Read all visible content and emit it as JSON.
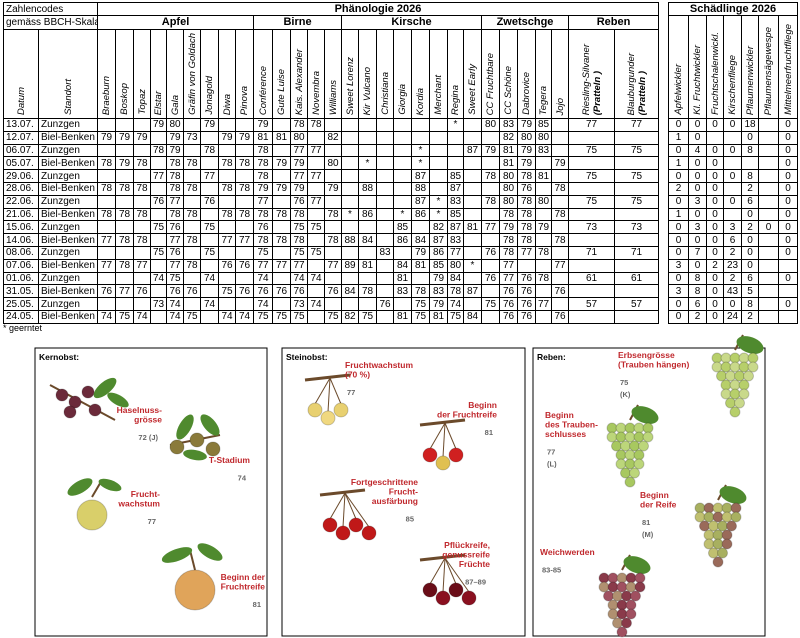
{
  "header": {
    "codes_title": "Zahlencodes",
    "codes_subtitle": "gemäss BBCH-Skala",
    "phenology_title": "Phänologie 2026",
    "pests_title": "Schädlinge 2026"
  },
  "table": {
    "columns": [
      "Datum",
      "Standort"
    ],
    "groups": [
      {
        "name": "Apfel",
        "columns": [
          "Braeburn",
          "Boskop",
          "Topaz",
          "Elstar",
          "Gala",
          "Gräfin von Goldach",
          "Jonagold",
          "Diwa",
          "Pinova"
        ]
      },
      {
        "name": "Birne",
        "columns": [
          "Conférence",
          "Gute Luise",
          "Kais. Alexander",
          "Novembra",
          "Williams"
        ]
      },
      {
        "name": "Kirsche",
        "columns": [
          "Sweet Lorenz",
          "Kir Vulcano",
          "Christiana",
          "Giorgia",
          "Kordia",
          "Merchant",
          "Regina",
          "Sweet Early"
        ]
      },
      {
        "name": "Zwetschge",
        "columns": [
          "CC Fruchtbare",
          "CC Schöne",
          "Dabrovice",
          "Tegera",
          "Jojo"
        ]
      },
      {
        "name": "Reben",
        "columns": [
          "Riesling-Silvaner",
          "Blauburgunder"
        ],
        "column_notes": [
          "(Pratteln )",
          "(Pratteln )"
        ]
      }
    ],
    "rows": [
      {
        "date": "13.07.",
        "location": "Zunzgen",
        "values": [
          null,
          null,
          null,
          79,
          80,
          null,
          79,
          null,
          null,
          79,
          null,
          78,
          78,
          null,
          null,
          null,
          null,
          null,
          null,
          null,
          "*",
          null,
          80,
          83,
          79,
          85,
          null,
          77,
          77
        ]
      },
      {
        "date": "12.07.",
        "location": "Biel-Benken",
        "values": [
          79,
          79,
          79,
          null,
          79,
          73,
          null,
          79,
          79,
          81,
          81,
          80,
          null,
          82,
          null,
          null,
          null,
          null,
          null,
          null,
          null,
          null,
          null,
          82,
          80,
          80,
          null,
          null,
          null
        ]
      },
      {
        "date": "06.07.",
        "location": "Zunzgen",
        "values": [
          null,
          null,
          null,
          78,
          79,
          null,
          78,
          null,
          null,
          78,
          null,
          77,
          77,
          null,
          null,
          null,
          null,
          null,
          "*",
          null,
          null,
          87,
          79,
          81,
          79,
          83,
          null,
          75,
          75
        ]
      },
      {
        "date": "05.07.",
        "location": "Biel-Benken",
        "values": [
          78,
          79,
          78,
          null,
          78,
          78,
          null,
          78,
          78,
          78,
          79,
          79,
          null,
          80,
          null,
          "*",
          null,
          null,
          "*",
          null,
          null,
          null,
          null,
          81,
          79,
          null,
          79,
          null,
          null
        ]
      },
      {
        "date": "29.06.",
        "location": "Zunzgen",
        "values": [
          null,
          null,
          null,
          77,
          78,
          null,
          77,
          null,
          null,
          78,
          null,
          77,
          77,
          null,
          null,
          null,
          null,
          null,
          87,
          null,
          85,
          null,
          78,
          80,
          78,
          81,
          null,
          75,
          75
        ]
      },
      {
        "date": "28.06.",
        "location": "Biel-Benken",
        "values": [
          78,
          78,
          78,
          null,
          78,
          78,
          null,
          78,
          78,
          79,
          79,
          79,
          null,
          79,
          null,
          88,
          null,
          null,
          88,
          null,
          87,
          null,
          null,
          80,
          76,
          null,
          78,
          null,
          null
        ]
      },
      {
        "date": "22.06.",
        "location": "Zunzgen",
        "values": [
          null,
          null,
          null,
          76,
          77,
          null,
          76,
          null,
          null,
          77,
          null,
          76,
          77,
          null,
          null,
          null,
          null,
          null,
          87,
          "*",
          83,
          null,
          78,
          80,
          78,
          80,
          null,
          75,
          75
        ]
      },
      {
        "date": "21.06.",
        "location": "Biel-Benken",
        "values": [
          78,
          78,
          78,
          null,
          78,
          78,
          null,
          78,
          78,
          78,
          78,
          78,
          null,
          78,
          "*",
          86,
          null,
          "*",
          86,
          "*",
          85,
          null,
          null,
          78,
          78,
          null,
          78,
          null,
          null
        ]
      },
      {
        "date": "15.06.",
        "location": "Zunzgen",
        "values": [
          null,
          null,
          null,
          75,
          76,
          null,
          75,
          null,
          null,
          76,
          null,
          75,
          75,
          null,
          null,
          null,
          null,
          85,
          null,
          82,
          87,
          81,
          77,
          79,
          78,
          79,
          null,
          73,
          73
        ]
      },
      {
        "date": "14.06.",
        "location": "Biel-Benken",
        "values": [
          77,
          78,
          78,
          null,
          77,
          78,
          null,
          77,
          77,
          78,
          78,
          78,
          null,
          78,
          88,
          84,
          null,
          86,
          84,
          87,
          83,
          null,
          null,
          78,
          78,
          null,
          78,
          null,
          null
        ]
      },
      {
        "date": "08.06.",
        "location": "Zunzgen",
        "values": [
          null,
          null,
          null,
          75,
          76,
          null,
          75,
          null,
          null,
          75,
          null,
          75,
          75,
          null,
          null,
          null,
          83,
          null,
          79,
          86,
          77,
          null,
          76,
          78,
          77,
          78,
          null,
          71,
          71
        ]
      },
      {
        "date": "07.06.",
        "location": "Biel-Benken",
        "values": [
          77,
          78,
          77,
          null,
          77,
          78,
          null,
          76,
          76,
          77,
          77,
          77,
          null,
          77,
          89,
          81,
          null,
          84,
          81,
          85,
          80,
          "*",
          null,
          77,
          null,
          null,
          77,
          null,
          null
        ]
      },
      {
        "date": "01.06.",
        "location": "Zunzgen",
        "values": [
          null,
          null,
          null,
          74,
          75,
          null,
          74,
          null,
          null,
          74,
          null,
          74,
          74,
          null,
          null,
          null,
          null,
          81,
          null,
          79,
          84,
          null,
          76,
          77,
          76,
          78,
          null,
          61,
          61
        ]
      },
      {
        "date": "31.05.",
        "location": "Biel-Benken",
        "values": [
          76,
          77,
          76,
          null,
          76,
          76,
          null,
          75,
          76,
          76,
          76,
          76,
          null,
          76,
          84,
          78,
          null,
          83,
          78,
          83,
          78,
          87,
          null,
          76,
          76,
          null,
          76,
          null,
          null
        ]
      },
      {
        "date": "25.05.",
        "location": "Zunzgen",
        "values": [
          null,
          null,
          null,
          73,
          74,
          null,
          74,
          null,
          null,
          74,
          null,
          73,
          74,
          null,
          null,
          null,
          76,
          null,
          75,
          79,
          74,
          null,
          75,
          76,
          76,
          77,
          null,
          57,
          57
        ]
      },
      {
        "date": "24.05.",
        "location": "Biel-Benken",
        "values": [
          74,
          75,
          74,
          null,
          74,
          75,
          null,
          74,
          74,
          75,
          75,
          75,
          null,
          75,
          82,
          75,
          null,
          81,
          75,
          81,
          75,
          84,
          null,
          76,
          76,
          null,
          76,
          null,
          null
        ]
      }
    ]
  },
  "pests": {
    "columns": [
      "Apfelwickler",
      "Kl. Fruchtwickler",
      "Fruchtschalenwickl.",
      "Kirschenfliege",
      "Pflaumenwickler",
      "Pflaumensägewespe",
      "Mittelmeerfruchtfliege"
    ],
    "rows": [
      [
        0,
        0,
        0,
        0,
        18,
        null,
        0
      ],
      [
        1,
        0,
        null,
        null,
        0,
        null,
        0
      ],
      [
        0,
        4,
        0,
        0,
        8,
        null,
        0
      ],
      [
        1,
        0,
        0,
        null,
        null,
        null,
        0
      ],
      [
        0,
        0,
        0,
        0,
        8,
        null,
        0
      ],
      [
        2,
        0,
        0,
        null,
        2,
        null,
        0
      ],
      [
        0,
        3,
        0,
        0,
        6,
        null,
        0
      ],
      [
        1,
        0,
        0,
        null,
        0,
        null,
        0
      ],
      [
        0,
        3,
        0,
        3,
        2,
        0,
        0
      ],
      [
        0,
        0,
        0,
        6,
        0,
        null,
        0
      ],
      [
        0,
        7,
        0,
        2,
        0,
        null,
        0
      ],
      [
        3,
        0,
        2,
        23,
        0,
        null,
        null
      ],
      [
        0,
        8,
        0,
        2,
        6,
        null,
        0
      ],
      [
        3,
        8,
        0,
        43,
        5,
        null,
        null
      ],
      [
        0,
        6,
        0,
        0,
        8,
        null,
        0
      ],
      [
        0,
        2,
        0,
        24,
        2,
        null,
        null
      ]
    ]
  },
  "footnote": "* geerntet",
  "panels": [
    {
      "title": "Kernobst:",
      "stages": [
        {
          "label": [
            "Haselnuss-",
            "grösse"
          ],
          "code": "72 (J)"
        },
        {
          "label": [
            "T-Stadium"
          ],
          "code": "74"
        },
        {
          "label": [
            "Frucht-",
            "wachstum"
          ],
          "code": "77"
        },
        {
          "label": [
            "Beginn der",
            "Fruchtreife"
          ],
          "code": "81"
        }
      ]
    },
    {
      "title": "Steinobst:",
      "stages": [
        {
          "label": [
            "Fruchtwachstum",
            "(70 %)"
          ],
          "code": "77"
        },
        {
          "label": [
            "Beginn",
            "der Fruchtreife"
          ],
          "code": "81"
        },
        {
          "label": [
            "Fortgeschrittene",
            "Frucht-",
            "ausfärbung"
          ],
          "code": "85"
        },
        {
          "label": [
            "Pflückreife,",
            "genussreife",
            "Früchte"
          ],
          "code": "87–89"
        }
      ]
    },
    {
      "title": "Reben:",
      "stages": [
        {
          "label": [
            "Erbsengrösse",
            "(Trauben hängen)"
          ],
          "code": "75",
          "letter": "(K)"
        },
        {
          "label": [
            "Beginn",
            "des Trauben-",
            "schlusses"
          ],
          "code": "77",
          "letter": "(L)"
        },
        {
          "label": [
            "Beginn",
            "der Reife"
          ],
          "code": "81",
          "letter": "(M)"
        },
        {
          "label": [
            "Weichwerden"
          ],
          "code": "83-85"
        }
      ]
    }
  ]
}
